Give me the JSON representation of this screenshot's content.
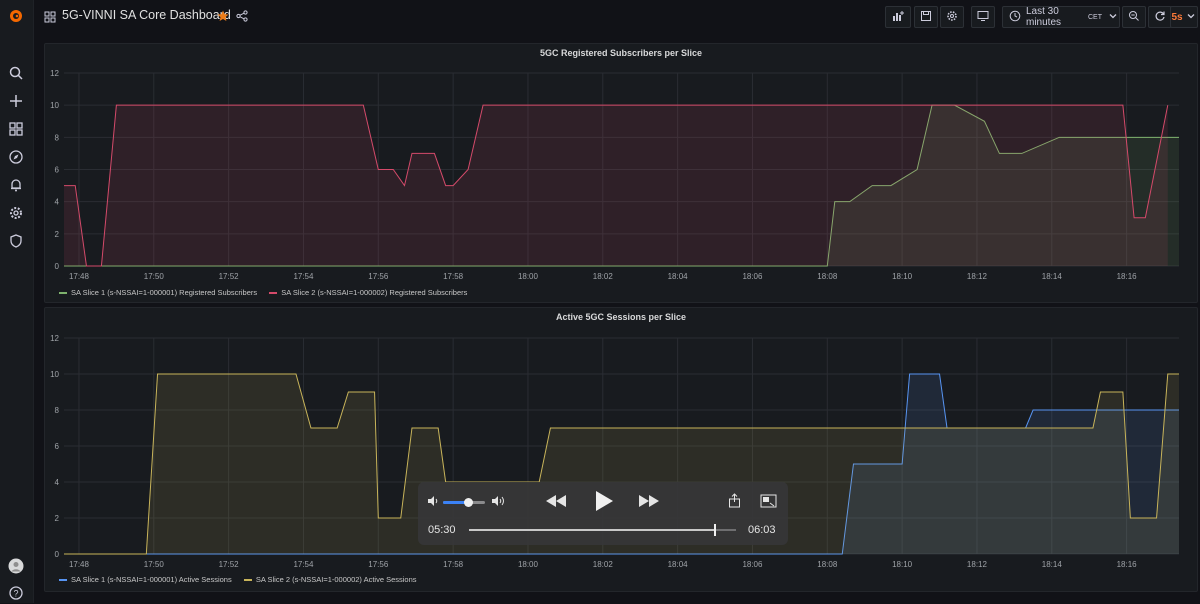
{
  "dashboard": {
    "title": "5G-VINNI SA Core Dashboard"
  },
  "time_picker": {
    "label": "Last 30 minutes",
    "tz": "CET"
  },
  "refresh": {
    "interval": "5s"
  },
  "colors": {
    "slice1_top": "#7eb26d",
    "slice2_top": "#d44a6a",
    "slice1_bottom": "#5794f2",
    "slice2_bottom": "#c8b45a"
  },
  "panels": [
    {
      "title": "5GC Registered Subscribers per Slice",
      "legend": [
        "SA Slice 1 (s-NSSAI=1-000001) Registered Subscribers",
        "SA Slice 2 (s-NSSAI=1-000002) Registered Subscribers"
      ]
    },
    {
      "title": "Active 5GC Sessions per Slice",
      "legend": [
        "SA Slice 1 (s-NSSAI=1-000001) Active Sessions",
        "SA Slice 2 (s-NSSAI=1-000002) Active Sessions"
      ]
    }
  ],
  "chart_data": [
    {
      "type": "area",
      "title": "5GC Registered Subscribers per Slice",
      "ylim": [
        0,
        12
      ],
      "yticks": [
        "0",
        "2",
        "4",
        "6",
        "8",
        "10",
        "12"
      ],
      "xticks": [
        "17:48",
        "17:50",
        "17:52",
        "17:54",
        "17:56",
        "17:58",
        "18:00",
        "18:02",
        "18:04",
        "18:06",
        "18:08",
        "18:10",
        "18:12",
        "18:14",
        "18:16"
      ],
      "x_range_min": [
        47.6,
        77.4
      ],
      "grid": true,
      "legend_position": "bottom-left",
      "series": [
        {
          "name": "SA Slice 1 (s-NSSAI=1-000001) Registered Subscribers",
          "color": "#7eb26d",
          "x": [
            47.6,
            68.0,
            68.2,
            68.6,
            69.2,
            69.7,
            70.4,
            70.8,
            71.4,
            72.2,
            72.6,
            73.2,
            74.2,
            75.0,
            76.1,
            77.4
          ],
          "y": [
            0,
            0,
            4,
            4,
            5,
            5,
            6,
            10,
            10,
            9,
            7,
            7,
            8,
            8,
            8,
            8
          ]
        },
        {
          "name": "SA Slice 2 (s-NSSAI=1-000002) Registered Subscribers",
          "color": "#d44a6a",
          "x": [
            47.6,
            47.9,
            48.2,
            48.6,
            49.0,
            55.6,
            56.0,
            56.4,
            56.7,
            56.9,
            57.5,
            57.8,
            58.0,
            58.4,
            58.6,
            58.8,
            75.9,
            76.2,
            76.5,
            77.1
          ],
          "y": [
            5,
            5,
            0,
            0,
            10,
            10,
            6,
            6,
            5,
            7,
            7,
            5,
            5,
            6,
            8,
            10,
            10,
            3,
            3,
            10
          ]
        }
      ]
    },
    {
      "type": "area",
      "title": "Active 5GC Sessions per Slice",
      "ylim": [
        0,
        12
      ],
      "yticks": [
        "0",
        "2",
        "4",
        "6",
        "8",
        "10",
        "12"
      ],
      "xticks": [
        "17:48",
        "17:50",
        "17:52",
        "17:54",
        "17:56",
        "17:58",
        "18:00",
        "18:02",
        "18:04",
        "18:06",
        "18:08",
        "18:10",
        "18:12",
        "18:14",
        "18:16"
      ],
      "x_range_min": [
        47.6,
        77.4
      ],
      "grid": true,
      "legend_position": "bottom-left",
      "series": [
        {
          "name": "SA Slice 1 (s-NSSAI=1-000001) Active Sessions",
          "color": "#5794f2",
          "x": [
            47.6,
            68.4,
            68.7,
            70.0,
            70.2,
            71.0,
            71.2,
            72.6,
            73.3,
            73.5,
            75.6,
            77.4
          ],
          "y": [
            0,
            0,
            5,
            5,
            10,
            10,
            7,
            7,
            7,
            8,
            8,
            8
          ]
        },
        {
          "name": "SA Slice 2 (s-NSSAI=1-000002) Active Sessions",
          "color": "#c8b45a",
          "x": [
            47.6,
            49.8,
            50.1,
            53.8,
            54.2,
            54.9,
            55.2,
            55.9,
            56.0,
            56.6,
            56.9,
            57.6,
            57.8,
            58.6,
            59.6,
            60.3,
            60.6,
            69.9,
            70.1,
            73.2,
            73.7,
            75.1,
            75.3,
            75.9,
            76.1,
            76.8,
            77.1,
            77.4
          ],
          "y": [
            0,
            0,
            10,
            10,
            7,
            7,
            9,
            9,
            2,
            2,
            7,
            7,
            4,
            4,
            4,
            4,
            7,
            7,
            7,
            7,
            7,
            7,
            9,
            9,
            2,
            2,
            10,
            10
          ]
        }
      ]
    }
  ],
  "player": {
    "elapsed": "05:30",
    "remaining": "06:03",
    "progress": 0.92,
    "volume": 0.6
  }
}
